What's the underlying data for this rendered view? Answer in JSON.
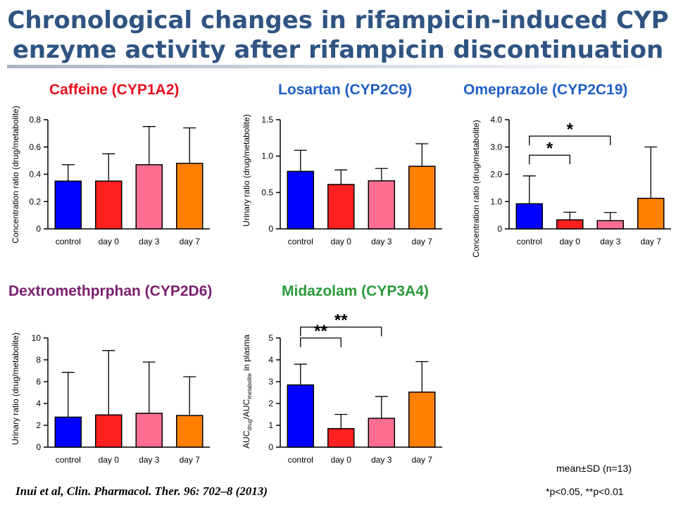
{
  "slide": {
    "title_line1": "Chronological changes in rifampicin-induced CYP",
    "title_line2": "enzyme activity after rifampicin discontinuation",
    "citation": "Inui et al, Clin. Pharmacol. Ther. 96: 702–8 (2013)",
    "note_mean": "mean±SD (n=13)",
    "note_p": "*p<0.05, **p<0.01"
  },
  "colors": {
    "title": "#2f5482",
    "control": "#0000ff",
    "day0": "#ff2020",
    "day3": "#ff6f93",
    "day7": "#ff7f00"
  },
  "chart_data": [
    {
      "type": "bar",
      "title": "Caffeine (CYP1A2)",
      "title_color": "#e8101c",
      "categories": [
        "control",
        "day 0",
        "day 3",
        "day 7"
      ],
      "values": [
        0.35,
        0.35,
        0.47,
        0.48
      ],
      "errors": [
        0.12,
        0.2,
        0.28,
        0.26
      ],
      "ylabel": "Concentration ratio (drug/metabolite)",
      "ylim": [
        0,
        0.8
      ],
      "yticks": [
        "0",
        "0.2",
        "0.4",
        "0.6",
        "0.8"
      ],
      "significance": []
    },
    {
      "type": "bar",
      "title": "Losartan (CYP2C9)",
      "title_color": "#1f5fc4",
      "categories": [
        "control",
        "day 0",
        "day 3",
        "day 7"
      ],
      "values": [
        0.79,
        0.61,
        0.66,
        0.86
      ],
      "errors": [
        0.29,
        0.2,
        0.17,
        0.31
      ],
      "ylabel": "Urinary ratio (drug/metabolite)",
      "ylim": [
        0,
        1.5
      ],
      "yticks": [
        "0",
        "0.5",
        "1.0",
        "1.5"
      ],
      "significance": []
    },
    {
      "type": "bar",
      "title": "Omeprazole (CYP2C19)",
      "title_color": "#1f5fc4",
      "categories": [
        "control",
        "day 0",
        "day 3",
        "day 7"
      ],
      "values": [
        0.92,
        0.33,
        0.3,
        1.12
      ],
      "errors": [
        1.02,
        0.28,
        0.3,
        1.88
      ],
      "ylabel": "Concentration ratio (drug/metabolite)",
      "ylim": [
        0,
        4.0
      ],
      "yticks": [
        "0",
        "1.0",
        "2.0",
        "3.0",
        "4.0"
      ],
      "significance": [
        {
          "from": 0,
          "to": 1,
          "label": "*",
          "level": 2.7
        },
        {
          "from": 0,
          "to": 2,
          "label": "*",
          "level": 3.4
        }
      ]
    },
    {
      "type": "bar",
      "title": "Dextromethprphan (CYP2D6)",
      "title_color": "#7a1f6e",
      "categories": [
        "control",
        "day 0",
        "day 3",
        "day 7"
      ],
      "values": [
        2.75,
        2.95,
        3.1,
        2.9
      ],
      "errors": [
        4.1,
        5.9,
        4.7,
        3.55
      ],
      "ylabel": "Urinary ratio (drug/metabolite)",
      "ylim": [
        0,
        10
      ],
      "yticks": [
        "0",
        "2",
        "4",
        "6",
        "8",
        "10"
      ],
      "significance": []
    },
    {
      "type": "bar",
      "title": "Midazolam (CYP3A4)",
      "title_color": "#2a9a3a",
      "categories": [
        "control",
        "day 0",
        "day 3",
        "day 7"
      ],
      "values": [
        2.85,
        0.85,
        1.32,
        2.52
      ],
      "errors": [
        0.95,
        0.65,
        1.0,
        1.4
      ],
      "ylabel_parts": {
        "a": "AUC",
        "a_sub": "drug",
        "b": "/AUC",
        "b_sub": "metabolite",
        "c": " in plasma"
      },
      "ylim": [
        0,
        5
      ],
      "yticks": [
        "0",
        "1",
        "2",
        "3",
        "4",
        "5"
      ],
      "significance": [
        {
          "from": 0,
          "to": 1,
          "label": "**",
          "level": 5.0
        },
        {
          "from": 0,
          "to": 2,
          "label": "**",
          "level": 5.5
        }
      ]
    }
  ]
}
